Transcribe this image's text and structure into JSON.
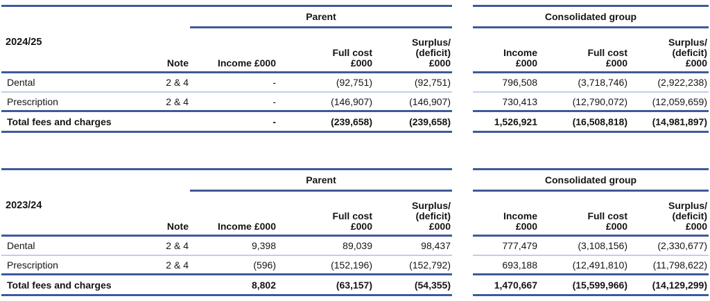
{
  "colors": {
    "rule_dark": "#3D5A99",
    "rule_light": "#BFCEE9",
    "text": "#141414"
  },
  "tables": [
    {
      "year": "2024/25",
      "note_header": "Note",
      "parent": {
        "heading": "Parent",
        "columns": [
          "Income £000",
          "Full cost\n£000",
          "Surplus/\n(deficit)\n£000"
        ]
      },
      "group": {
        "heading": "Consolidated group",
        "columns": [
          "Income\n£000",
          "Full cost\n£000",
          "Surplus/\n(deficit)\n£000"
        ]
      },
      "rows": [
        {
          "label": "Dental",
          "note": "2 & 4",
          "parent": [
            "-",
            "(92,751)",
            "(92,751)"
          ],
          "group": [
            "796,508",
            "(3,718,746)",
            "(2,922,238)"
          ]
        },
        {
          "label": "Prescription",
          "note": "2 & 4",
          "parent": [
            "-",
            "(146,907)",
            "(146,907)"
          ],
          "group": [
            "730,413",
            "(12,790,072)",
            "(12,059,659)"
          ]
        },
        {
          "label": "Total fees and charges",
          "note": "",
          "parent": [
            "-",
            "(239,658)",
            "(239,658)"
          ],
          "group": [
            "1,526,921",
            "(16,508,818)",
            "(14,981,897)"
          ]
        }
      ]
    },
    {
      "year": "2023/24",
      "note_header": "Note",
      "parent": {
        "heading": "Parent",
        "columns": [
          "Income £000",
          "Full cost\n£000",
          "Surplus/\n(deficit)\n£000"
        ]
      },
      "group": {
        "heading": "Consolidated group",
        "columns": [
          "Income\n£000",
          "Full cost\n£000",
          "Surplus/\n(deficit)\n£000"
        ]
      },
      "rows": [
        {
          "label": "Dental",
          "note": "2 & 4",
          "parent": [
            "9,398",
            "89,039",
            "98,437"
          ],
          "group": [
            "777,479",
            "(3,108,156)",
            "(2,330,677)"
          ]
        },
        {
          "label": "Prescription",
          "note": "2 & 4",
          "parent": [
            "(596)",
            "(152,196)",
            "(152,792)"
          ],
          "group": [
            "693,188",
            "(12,491,810)",
            "(11,798,622)"
          ]
        },
        {
          "label": "Total fees and charges",
          "note": "",
          "parent": [
            "8,802",
            "(63,157)",
            "(54,355)"
          ],
          "group": [
            "1,470,667",
            "(15,599,966)",
            "(14,129,299)"
          ]
        }
      ]
    }
  ]
}
